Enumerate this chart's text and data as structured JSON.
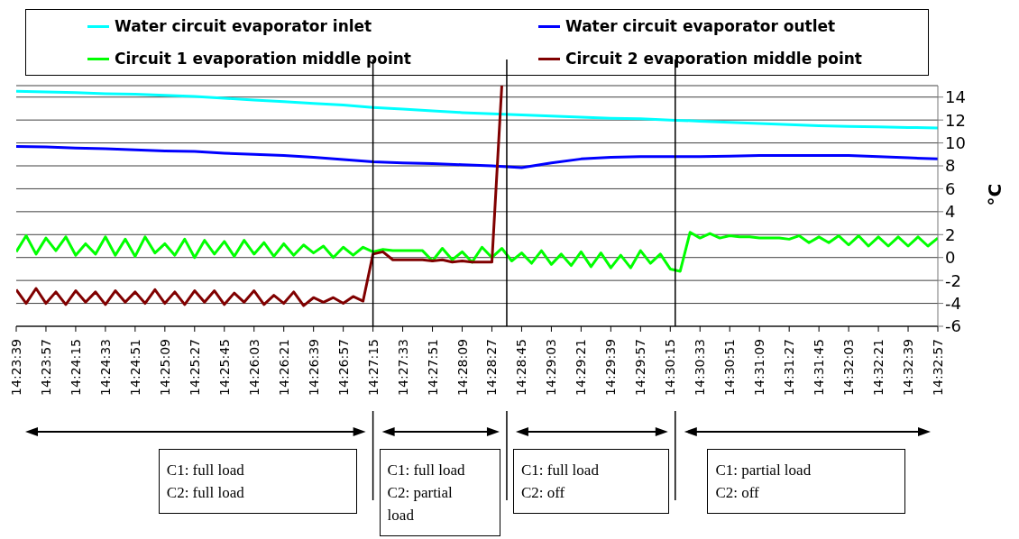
{
  "chart_data": {
    "type": "line",
    "ylabel": "°C",
    "legend": "top",
    "grid": "y",
    "marker": "none",
    "line_style": "solid",
    "xlim": [
      14.394167,
      14.549167
    ],
    "ylim": [
      -6,
      15
    ],
    "yticks": [
      -6,
      -4,
      -2,
      0,
      2,
      4,
      6,
      8,
      10,
      12,
      14
    ],
    "xticks": [
      {
        "value": 14.394167,
        "label": "14:23:39"
      },
      {
        "value": 14.399167,
        "label": "14:23:57"
      },
      {
        "value": 14.404167,
        "label": "14:24:15"
      },
      {
        "value": 14.409167,
        "label": "14:24:33"
      },
      {
        "value": 14.414167,
        "label": "14:24:51"
      },
      {
        "value": 14.419167,
        "label": "14:25:09"
      },
      {
        "value": 14.424167,
        "label": "14:25:27"
      },
      {
        "value": 14.429167,
        "label": "14:25:45"
      },
      {
        "value": 14.434167,
        "label": "14:26:03"
      },
      {
        "value": 14.439167,
        "label": "14:26:21"
      },
      {
        "value": 14.444167,
        "label": "14:26:39"
      },
      {
        "value": 14.449167,
        "label": "14:26:57"
      },
      {
        "value": 14.454167,
        "label": "14:27:15"
      },
      {
        "value": 14.459167,
        "label": "14:27:33"
      },
      {
        "value": 14.464167,
        "label": "14:27:51"
      },
      {
        "value": 14.469167,
        "label": "14:28:09"
      },
      {
        "value": 14.474167,
        "label": "14:28:27"
      },
      {
        "value": 14.479167,
        "label": "14:28:45"
      },
      {
        "value": 14.484167,
        "label": "14:29:03"
      },
      {
        "value": 14.489167,
        "label": "14:29:21"
      },
      {
        "value": 14.494167,
        "label": "14:29:39"
      },
      {
        "value": 14.499167,
        "label": "14:29:57"
      },
      {
        "value": 14.504167,
        "label": "14:30:15"
      },
      {
        "value": 14.509167,
        "label": "14:30:33"
      },
      {
        "value": 14.514167,
        "label": "14:30:51"
      },
      {
        "value": 14.519167,
        "label": "14:31:09"
      },
      {
        "value": 14.524167,
        "label": "14:31:27"
      },
      {
        "value": 14.529167,
        "label": "14:31:45"
      },
      {
        "value": 14.534167,
        "label": "14:32:03"
      },
      {
        "value": 14.539167,
        "label": "14:32:21"
      },
      {
        "value": 14.544167,
        "label": "14:32:39"
      },
      {
        "value": 14.549167,
        "label": "14:32:57"
      }
    ],
    "x": [
      14.394167,
      14.395833,
      14.3975,
      14.399167,
      14.400833,
      14.4025,
      14.404167,
      14.405833,
      14.4075,
      14.409167,
      14.410833,
      14.4125,
      14.414167,
      14.415833,
      14.4175,
      14.419167,
      14.420833,
      14.4225,
      14.424167,
      14.425833,
      14.4275,
      14.429167,
      14.430833,
      14.4325,
      14.434167,
      14.435833,
      14.4375,
      14.439167,
      14.440833,
      14.4425,
      14.444167,
      14.445833,
      14.4475,
      14.449167,
      14.450833,
      14.4525,
      14.454167,
      14.455833,
      14.4575,
      14.459167,
      14.460833,
      14.4625,
      14.464167,
      14.465833,
      14.4675,
      14.469167,
      14.470833,
      14.4725,
      14.474167,
      14.475833,
      14.4775,
      14.479167,
      14.480833,
      14.4825,
      14.484167,
      14.485833,
      14.4875,
      14.489167,
      14.490833,
      14.4925,
      14.494167,
      14.495833,
      14.4975,
      14.499167,
      14.500833,
      14.5025,
      14.504167,
      14.505833,
      14.5075,
      14.509167,
      14.510833,
      14.5125,
      14.514167,
      14.515833,
      14.5175,
      14.519167,
      14.520833,
      14.5225,
      14.524167,
      14.525833,
      14.5275,
      14.529167,
      14.530833,
      14.5325,
      14.534167,
      14.535833,
      14.5375,
      14.539167,
      14.540833,
      14.5425,
      14.544167,
      14.545833,
      14.5475,
      14.549167
    ],
    "series": [
      {
        "name": "Water circuit evaporator inlet",
        "color": "#00ffff",
        "x": [
          14.394167,
          14.399167,
          14.404167,
          14.409167,
          14.414167,
          14.419167,
          14.424167,
          14.429167,
          14.434167,
          14.439167,
          14.444167,
          14.449167,
          14.454167,
          14.459167,
          14.464167,
          14.469167,
          14.474167,
          14.479167,
          14.484167,
          14.489167,
          14.494167,
          14.499167,
          14.504167,
          14.509167,
          14.514167,
          14.519167,
          14.524167,
          14.529167,
          14.534167,
          14.539167,
          14.544167,
          14.549167
        ],
        "values": [
          14.5,
          14.45,
          14.4,
          14.3,
          14.25,
          14.15,
          14.05,
          13.9,
          13.75,
          13.6,
          13.45,
          13.3,
          13.1,
          12.95,
          12.8,
          12.65,
          12.55,
          12.45,
          12.35,
          12.25,
          12.15,
          12.1,
          12.0,
          11.9,
          11.8,
          11.7,
          11.6,
          11.5,
          11.45,
          11.4,
          11.35,
          11.3
        ]
      },
      {
        "name": "Water circuit evaporator outlet",
        "color": "#0000ff",
        "x": [
          14.394167,
          14.399167,
          14.404167,
          14.409167,
          14.414167,
          14.419167,
          14.424167,
          14.429167,
          14.434167,
          14.439167,
          14.444167,
          14.449167,
          14.454167,
          14.459167,
          14.464167,
          14.469167,
          14.474167,
          14.479167,
          14.484167,
          14.489167,
          14.494167,
          14.499167,
          14.504167,
          14.509167,
          14.514167,
          14.519167,
          14.524167,
          14.529167,
          14.534167,
          14.539167,
          14.544167,
          14.549167
        ],
        "values": [
          9.7,
          9.65,
          9.55,
          9.5,
          9.4,
          9.3,
          9.25,
          9.1,
          9.0,
          8.9,
          8.75,
          8.55,
          8.35,
          8.25,
          8.2,
          8.1,
          8.0,
          7.85,
          8.25,
          8.6,
          8.75,
          8.8,
          8.8,
          8.8,
          8.85,
          8.9,
          8.9,
          8.9,
          8.9,
          8.8,
          8.7,
          8.6
        ]
      },
      {
        "name": "Circuit 1 evaporation middle point",
        "color": "#00ff00",
        "values": [
          0.5,
          1.9,
          0.3,
          1.7,
          0.6,
          1.8,
          0.2,
          1.2,
          0.3,
          1.8,
          0.2,
          1.6,
          0.1,
          1.8,
          0.4,
          1.2,
          0.2,
          1.6,
          0.0,
          1.5,
          0.3,
          1.4,
          0.1,
          1.5,
          0.3,
          1.3,
          0.1,
          1.2,
          0.2,
          1.1,
          0.4,
          1.0,
          0.0,
          0.9,
          0.2,
          0.9,
          0.5,
          0.7,
          0.6,
          0.6,
          0.6,
          0.6,
          -0.3,
          0.8,
          -0.2,
          0.5,
          -0.4,
          0.9,
          0.0,
          0.8,
          -0.3,
          0.4,
          -0.5,
          0.6,
          -0.6,
          0.3,
          -0.7,
          0.5,
          -0.8,
          0.4,
          -0.9,
          0.2,
          -0.9,
          0.6,
          -0.5,
          0.3,
          -1.0,
          -1.2,
          2.2,
          1.7,
          2.1,
          1.7,
          1.9,
          1.8,
          1.8,
          1.7,
          1.7,
          1.7,
          1.6,
          1.9,
          1.3,
          1.8,
          1.3,
          1.9,
          1.1,
          1.9,
          1.0,
          1.8,
          1.0,
          1.8,
          1.0,
          1.8,
          1.0,
          1.7
        ]
      },
      {
        "name": "Circuit 2 evaporation middle point",
        "color": "#800000",
        "values": [
          -2.8,
          -4.0,
          -2.7,
          -4.0,
          -3.0,
          -4.1,
          -2.9,
          -3.9,
          -3.0,
          -4.1,
          -2.9,
          -3.9,
          -3.0,
          -4.0,
          -2.8,
          -4.0,
          -3.0,
          -4.1,
          -2.9,
          -3.9,
          -2.9,
          -4.1,
          -3.1,
          -3.9,
          -2.9,
          -4.1,
          -3.3,
          -4.0,
          -3.0,
          -4.2,
          -3.5,
          -3.9,
          -3.5,
          -4.0,
          -3.4,
          -3.8,
          0.3,
          0.5,
          -0.2,
          -0.2,
          -0.2,
          -0.2,
          -0.3,
          -0.2,
          -0.4,
          -0.3,
          -0.4,
          -0.4,
          -0.4,
          15,
          null,
          null,
          null,
          null,
          null,
          null,
          null,
          null,
          null,
          null,
          null,
          null,
          null,
          null,
          null,
          null,
          null,
          null,
          null,
          null,
          null,
          null,
          null,
          null,
          null,
          null,
          null,
          null,
          null,
          null,
          null,
          null,
          null,
          null,
          null,
          null,
          null,
          null,
          null,
          null,
          null,
          null,
          null,
          null
        ]
      }
    ],
    "ref_lines": [
      {
        "axis": "x",
        "value": 14.454167
      },
      {
        "axis": "x",
        "value": 14.476667
      },
      {
        "axis": "x",
        "value": 14.505
      }
    ],
    "annotations": [
      "C1: full load\nC2: full load",
      "C1: full load\nC2: partial\nload",
      "C1: full load\nC2: off",
      "C1: partial load\nC2: off"
    ]
  }
}
